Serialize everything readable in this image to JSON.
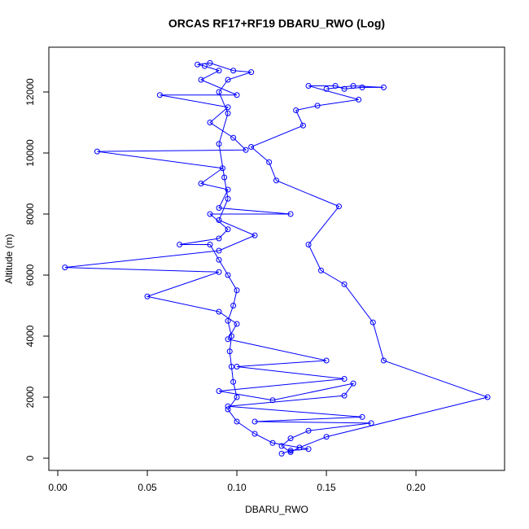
{
  "chart_data": {
    "type": "line",
    "title": "ORCAS RF17+RF19 DBARU_RWO (Log)",
    "x_label": "DBARU_RWO",
    "y_label": "Altitude (m)",
    "color": "#0000ff",
    "xlim": [
      -0.005,
      0.2495
    ],
    "ylim": [
      -400,
      13467
    ],
    "xticks": [
      {
        "value": 0,
        "label": "0.00"
      },
      {
        "value": 0.05,
        "label": "0.05"
      },
      {
        "value": 0.1,
        "label": "0.10"
      },
      {
        "value": 0.15,
        "label": "0.15"
      },
      {
        "value": 0.2,
        "label": "0.20"
      }
    ],
    "yticks": [
      0,
      2000,
      4000,
      6000,
      8000,
      10000,
      12000
    ],
    "x": [
      0.125,
      0.13,
      0.14,
      0.12,
      0.11,
      0.1,
      0.095,
      0.1,
      0.098,
      0.097,
      0.096,
      0.097,
      0.095,
      0.098,
      0.1,
      0.095,
      0.09,
      0.085,
      0.068,
      0.09,
      0.095,
      0.085,
      0.13,
      0.09,
      0.095,
      0.08,
      0.092,
      0.022,
      0.105,
      0.098,
      0.085,
      0.095,
      0.057,
      0.1,
      0.08,
      0.09,
      0.082,
      0.078,
      0.085,
      0.098,
      0.108,
      0.095,
      0.09,
      0.095,
      0.09,
      0.093,
      0.095,
      0.09,
      0.11,
      0.09,
      0.004,
      0.09,
      0.05,
      0.09,
      0.1,
      0.095,
      0.15,
      0.1,
      0.16,
      0.09,
      0.12,
      0.165,
      0.16,
      0.095,
      0.17,
      0.11,
      0.175,
      0.14,
      0.13,
      0.125,
      0.13,
      0.135,
      0.15,
      0.24,
      0.182,
      0.176,
      0.16,
      0.147,
      0.14,
      0.157,
      0.122,
      0.118,
      0.108,
      0.137,
      0.133,
      0.145,
      0.168,
      0.14,
      0.155,
      0.16,
      0.17,
      0.182,
      0.165,
      0.15
    ],
    "values": [
      150,
      250,
      300,
      500,
      800,
      1200,
      1600,
      2000,
      2500,
      3000,
      3500,
      4000,
      4500,
      5000,
      5500,
      6000,
      6500,
      7000,
      7000,
      7200,
      7500,
      8000,
      8000,
      8200,
      8800,
      9000,
      9500,
      10050,
      10100,
      10500,
      11000,
      11500,
      11900,
      11900,
      12400,
      12700,
      12850,
      12900,
      12950,
      12700,
      12650,
      12400,
      12000,
      11300,
      10300,
      9200,
      8500,
      7800,
      7300,
      6800,
      6250,
      6100,
      5300,
      4800,
      4400,
      3900,
      3200,
      3000,
      2600,
      2200,
      1900,
      2450,
      2050,
      1700,
      1350,
      1200,
      1150,
      900,
      650,
      400,
      200,
      350,
      700,
      2000,
      3200,
      4450,
      5700,
      6150,
      7000,
      8250,
      9100,
      9700,
      10200,
      10900,
      11400,
      11550,
      11750,
      12200,
      12200,
      12100,
      12150,
      12150,
      12200,
      12100
    ]
  }
}
